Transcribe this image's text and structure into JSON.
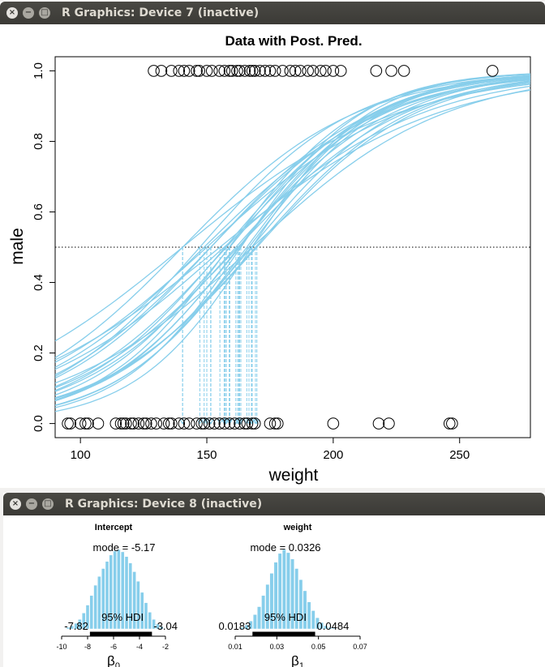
{
  "window7": {
    "title": "R Graphics: Device 7 (inactive)"
  },
  "window8": {
    "title": "R Graphics: Device 8 (inactive)"
  },
  "window_buttons": {
    "close": "×",
    "minimize": "−",
    "maximize": "□"
  },
  "icons": [
    "close-icon",
    "minimize-icon",
    "maximize-icon"
  ],
  "colors": {
    "curve": "#87ceeb",
    "points": "#000000",
    "titlebar": "#3b3a36"
  },
  "chart_data": [
    {
      "type": "scatter",
      "title": "Data with Post. Pred.",
      "xlabel": "weight",
      "ylabel": "male",
      "xlim": [
        90,
        278
      ],
      "ylim": [
        -0.04,
        1.04
      ],
      "xticks": [
        100,
        150,
        200,
        250
      ],
      "yticks": [
        0.0,
        0.2,
        0.4,
        0.6,
        0.8,
        1.0
      ],
      "ytick_labels": [
        "0.0",
        "0.2",
        "0.4",
        "0.6",
        "0.8",
        "1.0"
      ],
      "threshold_line": 0.5,
      "points": {
        "male_weights": [
          129,
          132,
          136,
          139,
          141,
          143,
          146,
          147,
          150,
          152,
          155,
          157,
          159,
          160,
          162,
          163,
          165,
          167,
          168,
          169,
          171,
          173,
          175,
          177,
          180,
          183,
          185,
          187,
          190,
          192,
          195,
          197,
          200,
          203,
          217,
          223,
          228,
          263
        ],
        "female_weights": [
          95,
          96,
          100,
          102,
          103,
          107,
          114,
          116,
          117,
          118,
          120,
          121,
          123,
          125,
          126,
          128,
          130,
          133,
          135,
          136,
          139,
          141,
          143,
          146,
          148,
          149,
          151,
          153,
          155,
          157,
          159,
          161,
          163,
          165,
          166,
          168,
          169,
          175,
          177,
          178,
          200,
          218,
          222,
          246,
          247
        ]
      },
      "posterior_curves": [
        {
          "b0": -4.8,
          "b1": 0.0326
        },
        {
          "b0": -3.9,
          "b1": 0.026
        },
        {
          "b0": -6.1,
          "b1": 0.0384
        },
        {
          "b0": -5.3,
          "b1": 0.0337
        },
        {
          "b0": -4.2,
          "b1": 0.0282
        },
        {
          "b0": -6.8,
          "b1": 0.0416
        },
        {
          "b0": -5.6,
          "b1": 0.0352
        },
        {
          "b0": -4.5,
          "b1": 0.0297
        },
        {
          "b0": -5.9,
          "b1": 0.0362
        },
        {
          "b0": -3.6,
          "b1": 0.0232
        },
        {
          "b0": -5.0,
          "b1": 0.0317
        },
        {
          "b0": -6.4,
          "b1": 0.0386
        },
        {
          "b0": -4.7,
          "b1": 0.031
        },
        {
          "b0": -5.4,
          "b1": 0.0318
        },
        {
          "b0": -7.2,
          "b1": 0.0429
        },
        {
          "b0": -4.1,
          "b1": 0.0292
        },
        {
          "b0": -5.2,
          "b1": 0.0322
        },
        {
          "b0": -6.0,
          "b1": 0.0369
        },
        {
          "b0": -4.4,
          "b1": 0.0262
        },
        {
          "b0": -5.7,
          "b1": 0.034
        },
        {
          "b0": -3.3,
          "b1": 0.0235
        },
        {
          "b0": -4.9,
          "b1": 0.0302
        },
        {
          "b0": -6.3,
          "b1": 0.0378
        },
        {
          "b0": -5.5,
          "b1": 0.0325
        },
        {
          "b0": -4.0,
          "b1": 0.0255
        }
      ]
    },
    {
      "type": "bar",
      "title": "Intercept",
      "mode_label": "mode = -5.17",
      "hdi_label": "95% HDI",
      "hdi": [
        -7.82,
        -3.04
      ],
      "hdi_low_label": "-7.82",
      "hdi_high_label": "-3.04",
      "xlim": [
        -10,
        -2
      ],
      "xticks": [
        -10,
        -8,
        -6,
        -4,
        -2
      ],
      "xtick_labels": [
        "-10",
        "-8",
        "-6",
        "-4",
        "-2"
      ],
      "xlabel_sym": "β",
      "xlabel_sub": "0",
      "bins": [
        -9.5,
        -9.2,
        -8.9,
        -8.6,
        -8.3,
        -8.0,
        -7.7,
        -7.4,
        -7.1,
        -6.8,
        -6.5,
        -6.2,
        -5.9,
        -5.6,
        -5.3,
        -5.0,
        -4.7,
        -4.4,
        -4.1,
        -3.8,
        -3.5,
        -3.2,
        -2.9,
        -2.6,
        -2.3
      ],
      "counts": [
        0.02,
        0.04,
        0.07,
        0.12,
        0.2,
        0.3,
        0.42,
        0.55,
        0.66,
        0.76,
        0.85,
        0.93,
        0.98,
        1.0,
        0.97,
        0.91,
        0.83,
        0.72,
        0.6,
        0.46,
        0.33,
        0.21,
        0.12,
        0.06,
        0.03
      ]
    },
    {
      "type": "bar",
      "title": "weight",
      "mode_label": "mode = 0.0326",
      "hdi_label": "95% HDI",
      "hdi": [
        0.0183,
        0.0484
      ],
      "hdi_low_label": "0.0183",
      "hdi_high_label": "0.0484",
      "xlim": [
        0.01,
        0.07
      ],
      "xticks": [
        0.01,
        0.03,
        0.05,
        0.07
      ],
      "xtick_labels": [
        "0.01",
        "0.03",
        "0.05",
        "0.07"
      ],
      "xlabel_sym": "β",
      "xlabel_sub": "1",
      "bins": [
        0.0135,
        0.0155,
        0.0175,
        0.0195,
        0.0215,
        0.0235,
        0.0255,
        0.0275,
        0.0295,
        0.0315,
        0.0335,
        0.0355,
        0.0375,
        0.0395,
        0.0415,
        0.0435,
        0.0455,
        0.0475,
        0.0495,
        0.0515,
        0.0535,
        0.0555,
        0.0575
      ],
      "counts": [
        0.02,
        0.05,
        0.1,
        0.18,
        0.28,
        0.42,
        0.56,
        0.7,
        0.84,
        0.95,
        1.0,
        0.96,
        0.88,
        0.76,
        0.62,
        0.48,
        0.34,
        0.23,
        0.14,
        0.08,
        0.04,
        0.02,
        0.01
      ]
    }
  ]
}
